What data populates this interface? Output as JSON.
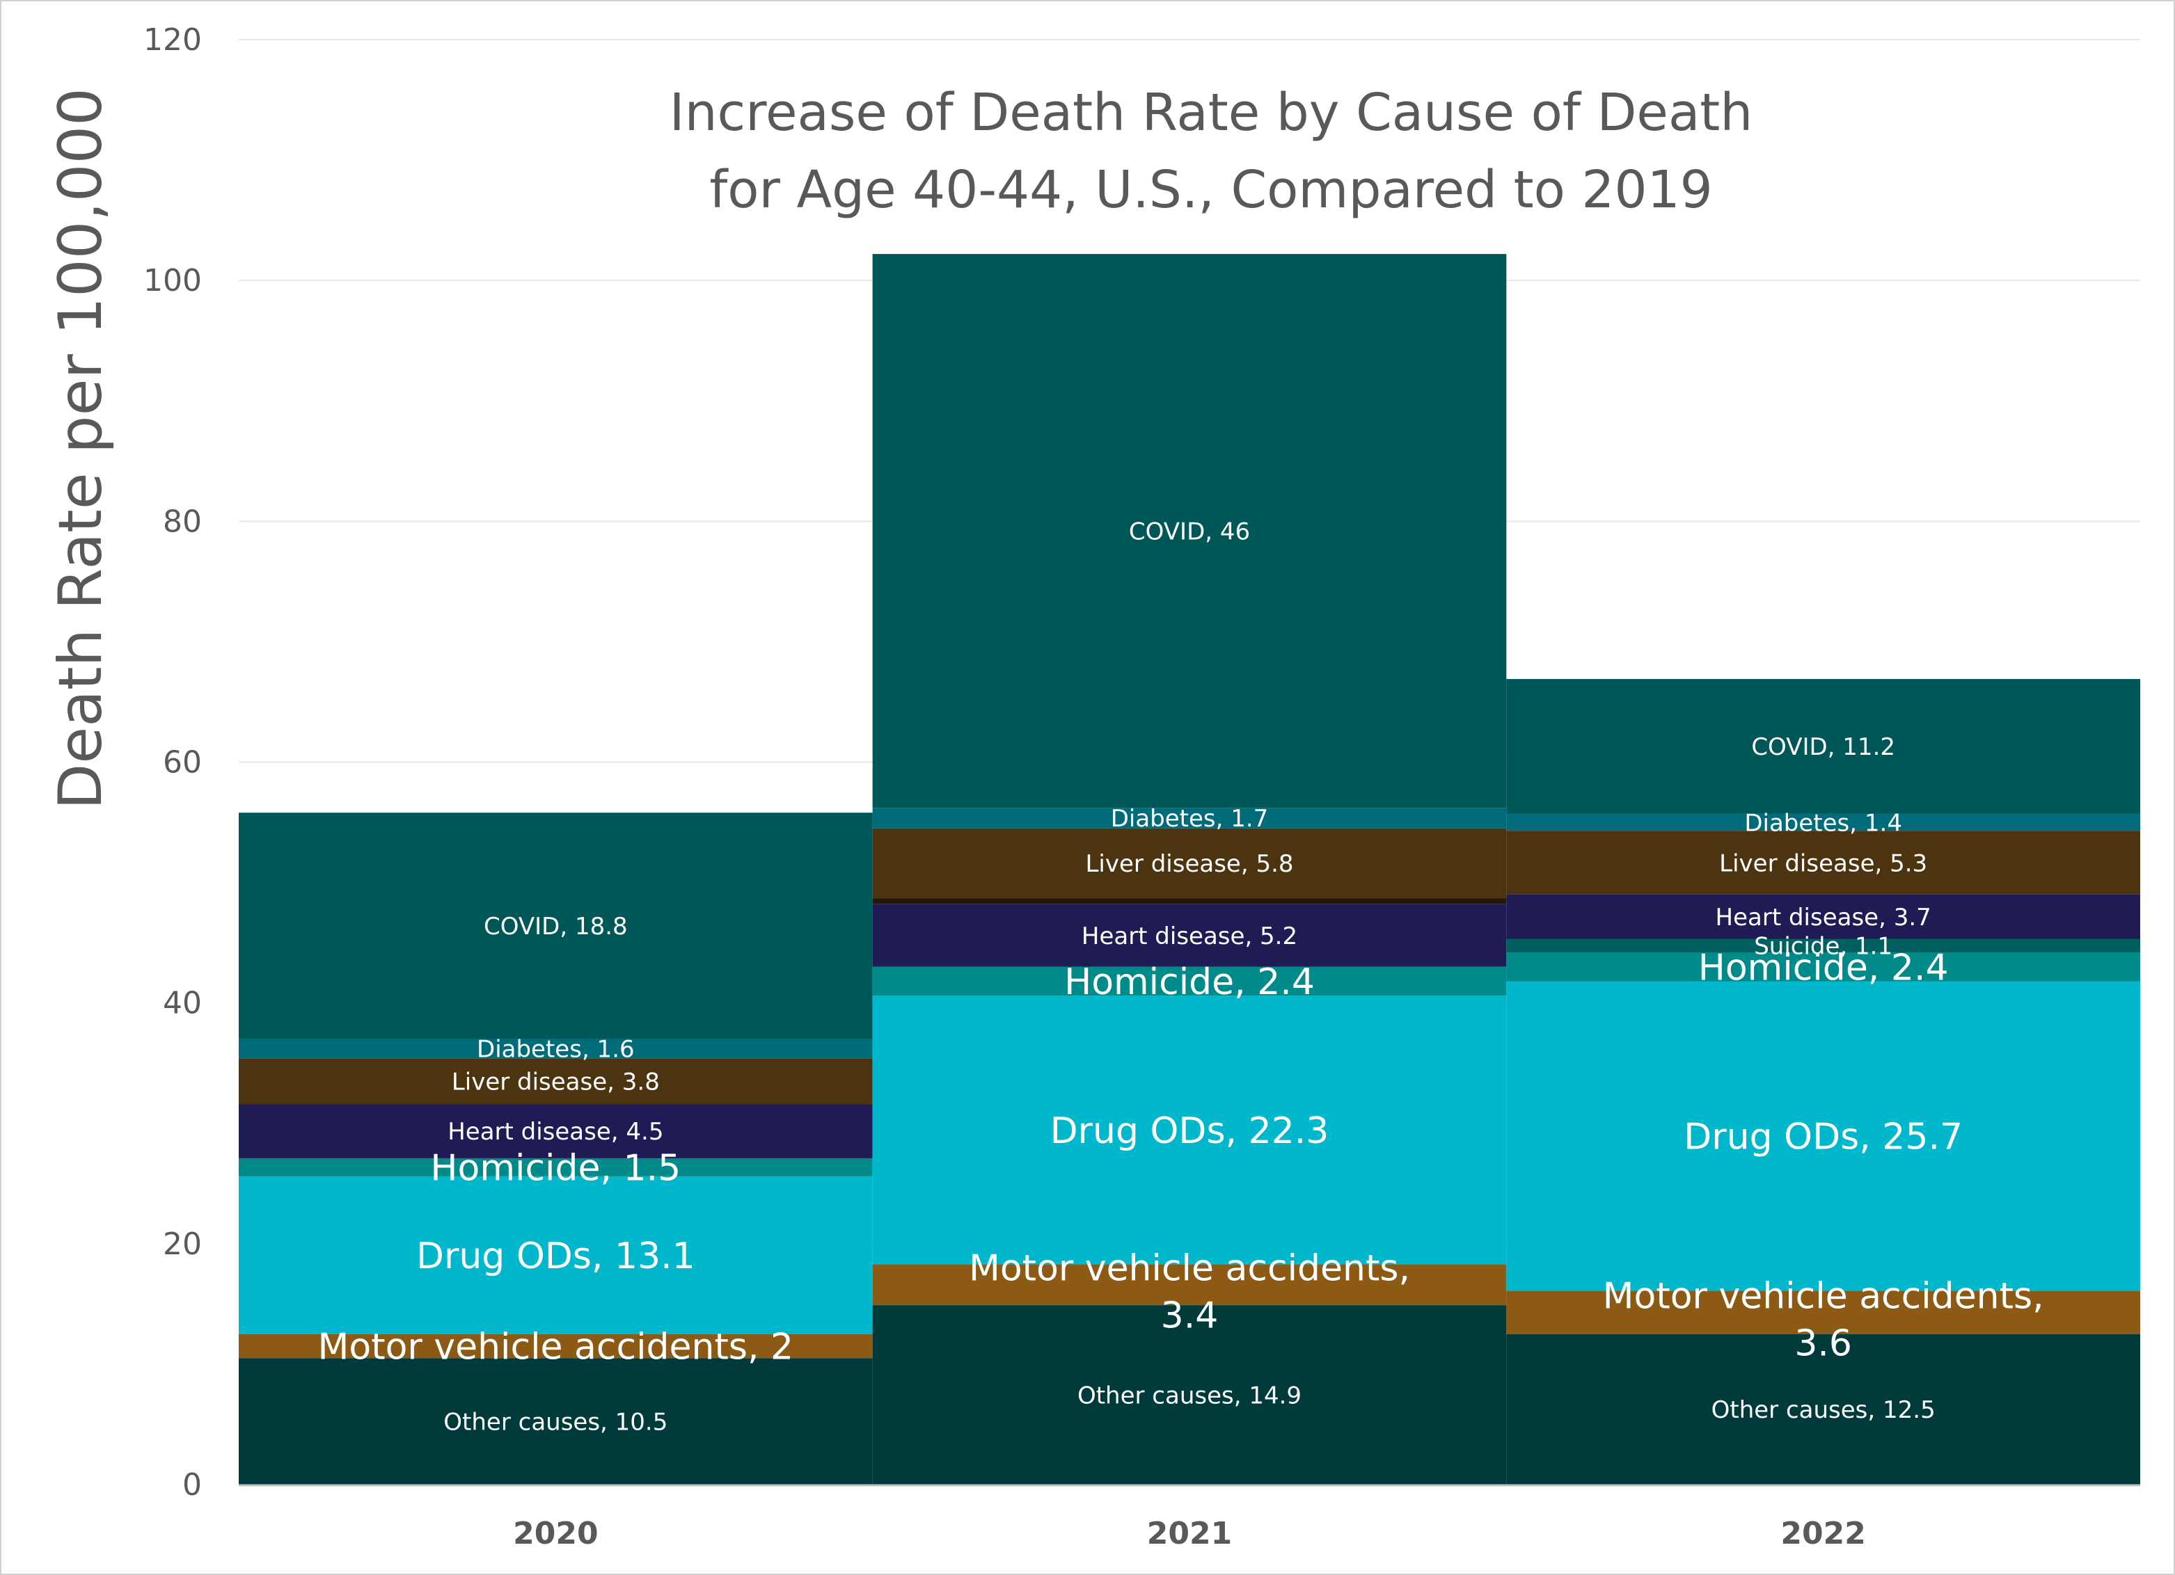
{
  "chart_data": {
    "type": "bar",
    "stacked": true,
    "title_lines": [
      "Increase of Death Rate by Cause of Death",
      "for Age 40-44, U.S., Compared to 2019"
    ],
    "xlabel": "",
    "ylabel": "Death Rate per 100,000",
    "ylim": [
      0,
      120
    ],
    "yticks": [
      "0",
      "20",
      "40",
      "60",
      "80",
      "100",
      "120"
    ],
    "grid": true,
    "categories": [
      "2020",
      "2021",
      "2022"
    ],
    "series": [
      {
        "name": "Other causes",
        "color": "#003a3a",
        "values": [
          10.5,
          14.9,
          12.5
        ],
        "labels": [
          "Other causes, 10.5",
          "Other causes, 14.9",
          "Other causes, 12.5"
        ]
      },
      {
        "name": "Motor vehicle accidents",
        "color": "#8c5a14",
        "values": [
          2,
          3.4,
          3.6
        ],
        "labels": [
          "Motor vehicle accidents, 2",
          "Motor vehicle accidents, 3.4",
          "Motor vehicle accidents, 3.6"
        ]
      },
      {
        "name": "Drug ODs",
        "color": "#00b7cc",
        "values": [
          13.1,
          22.3,
          25.7
        ],
        "labels": [
          "Drug ODs, 13.1",
          "Drug ODs, 22.3",
          "Drug ODs, 25.7"
        ]
      },
      {
        "name": "Homicide",
        "color": "#008b8b",
        "values": [
          1.5,
          2.4,
          2.4
        ],
        "labels": [
          "Homicide, 1.5",
          "Homicide, 2.4",
          "Homicide, 2.4"
        ]
      },
      {
        "name": "Suicide",
        "color": "#00605f",
        "values": [
          null,
          null,
          1.1
        ],
        "labels": [
          "",
          "",
          "Suicide, 1.1"
        ]
      },
      {
        "name": "Heart disease",
        "color": "#1e1b55",
        "values": [
          4.5,
          5.2,
          3.7
        ],
        "labels": [
          "Heart disease, 4.5",
          "Heart disease, 5.2",
          "Heart disease, 3.7"
        ]
      },
      {
        "name": "Other (unlabeled)",
        "color": "#241a0a",
        "values": [
          null,
          0.5,
          null
        ],
        "labels": [
          "",
          "",
          ""
        ]
      },
      {
        "name": "Liver disease",
        "color": "#4d3410",
        "values": [
          3.8,
          5.8,
          5.3
        ],
        "labels": [
          "Liver disease, 3.8",
          "Liver disease, 5.8",
          "Liver disease, 5.3"
        ]
      },
      {
        "name": "Diabetes",
        "color": "#006c7a",
        "values": [
          1.6,
          1.7,
          1.4
        ],
        "labels": [
          "Diabetes, 1.6",
          "Diabetes, 1.7",
          "Diabetes, 1.4"
        ]
      },
      {
        "name": "COVID",
        "color": "#005757",
        "values": [
          18.8,
          46,
          11.2
        ],
        "labels": [
          "COVID, 18.8",
          "COVID, 46",
          "COVID, 11.2"
        ]
      }
    ]
  }
}
